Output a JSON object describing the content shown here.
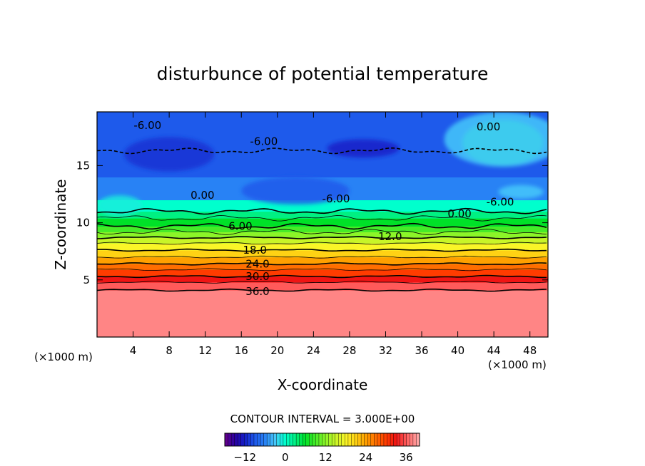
{
  "chart_data": {
    "type": "heatmap",
    "title": "disturbunce of potential temperature",
    "xlabel": "X-coordinate",
    "ylabel": "Z-coordinate",
    "x_unit_left": "(×1000 m)",
    "x_unit_right": "(×1000 m)",
    "xlim": [
      0,
      50
    ],
    "ylim": [
      0,
      19.7
    ],
    "x_ticks": [
      4,
      8,
      12,
      16,
      20,
      24,
      28,
      32,
      36,
      40,
      44,
      48
    ],
    "x_tick_labels": [
      "4",
      "8",
      "12",
      "16",
      "20",
      "24",
      "28",
      "32",
      "36",
      "40",
      "44",
      "48"
    ],
    "y_ticks": [
      5,
      10,
      15
    ],
    "y_tick_labels": [
      "5",
      "10",
      "15"
    ],
    "contour_interval_text": "CONTOUR INTERVAL = 3.000E+00",
    "colorbar": {
      "min": -18,
      "max": 40,
      "ticks": [
        -12,
        0,
        12,
        24,
        36
      ],
      "tick_labels": [
        "−12",
        "0",
        "12",
        "24",
        "36"
      ]
    },
    "contour_labels": [
      {
        "text": "-6.00",
        "x": 5.6,
        "z": 18.5
      },
      {
        "text": "-6.00",
        "x": 18.5,
        "z": 17.1
      },
      {
        "text": "0.00",
        "x": 43.4,
        "z": 18.4
      },
      {
        "text": "0.00",
        "x": 11.7,
        "z": 12.4
      },
      {
        "text": "-6.00",
        "x": 26.5,
        "z": 12.1
      },
      {
        "text": "-6.00",
        "x": 44.7,
        "z": 11.8
      },
      {
        "text": "0.00",
        "x": 40.2,
        "z": 10.8
      },
      {
        "text": "6.00",
        "x": 15.9,
        "z": 9.7
      },
      {
        "text": "12.0",
        "x": 32.5,
        "z": 8.8
      },
      {
        "text": "18.0",
        "x": 17.5,
        "z": 7.6
      },
      {
        "text": "24.0",
        "x": 17.8,
        "z": 6.4
      },
      {
        "text": "30.0",
        "x": 17.8,
        "z": 5.3
      },
      {
        "text": "36.0",
        "x": 17.8,
        "z": 4.0
      }
    ],
    "contour_levels": [
      {
        "value": -6,
        "z": 16.3
      },
      {
        "value": 0,
        "z": 11.0
      },
      {
        "value": 3,
        "z": 10.4
      },
      {
        "value": 6,
        "z": 9.7
      },
      {
        "value": 9,
        "z": 9.2
      },
      {
        "value": 12,
        "z": 8.7
      },
      {
        "value": 15,
        "z": 8.2
      },
      {
        "value": 18,
        "z": 7.6
      },
      {
        "value": 21,
        "z": 7.0
      },
      {
        "value": 24,
        "z": 6.4
      },
      {
        "value": 27,
        "z": 5.9
      },
      {
        "value": 30,
        "z": 5.3
      },
      {
        "value": 33,
        "z": 4.8
      },
      {
        "value": 36,
        "z": 4.1
      }
    ],
    "bands": [
      {
        "z0": 0.0,
        "z1": 4.1,
        "value": 38
      },
      {
        "z0": 4.1,
        "z1": 4.8,
        "value": 36
      },
      {
        "z0": 4.8,
        "z1": 5.3,
        "value": 33
      },
      {
        "z0": 5.3,
        "z1": 5.9,
        "value": 30
      },
      {
        "z0": 5.9,
        "z1": 6.4,
        "value": 27
      },
      {
        "z0": 6.4,
        "z1": 7.0,
        "value": 24
      },
      {
        "z0": 7.0,
        "z1": 7.6,
        "value": 21
      },
      {
        "z0": 7.6,
        "z1": 8.2,
        "value": 18
      },
      {
        "z0": 8.2,
        "z1": 8.7,
        "value": 15
      },
      {
        "z0": 8.7,
        "z1": 9.2,
        "value": 12
      },
      {
        "z0": 9.2,
        "z1": 9.7,
        "value": 9
      },
      {
        "z0": 9.7,
        "z1": 10.4,
        "value": 6
      },
      {
        "z0": 10.4,
        "z1": 11.0,
        "value": 3
      },
      {
        "z0": 11.0,
        "z1": 12.0,
        "value": 0
      },
      {
        "z0": 12.0,
        "z1": 14.0,
        "value": -6
      },
      {
        "z0": 14.0,
        "z1": 19.7,
        "value": -9
      }
    ],
    "patches": [
      {
        "x": 45.0,
        "z": 17.0,
        "rx": 4.5,
        "rz": 2.0,
        "value": 2
      },
      {
        "x": 45.0,
        "z": 17.3,
        "rx": 6.5,
        "rz": 2.4,
        "value": -3
      },
      {
        "x": 29.5,
        "z": 16.5,
        "rx": 4.0,
        "rz": 0.8,
        "value": -12
      },
      {
        "x": 8.0,
        "z": 16.0,
        "rx": 5.0,
        "rz": 1.5,
        "value": -11
      },
      {
        "x": 22.0,
        "z": 12.8,
        "rx": 6.0,
        "rz": 1.2,
        "value": -9
      },
      {
        "x": 47.0,
        "z": 12.7,
        "rx": 2.5,
        "rz": 0.6,
        "value": -3
      },
      {
        "x": 2.5,
        "z": 11.5,
        "rx": 2.5,
        "rz": 0.9,
        "value": -1
      }
    ]
  }
}
